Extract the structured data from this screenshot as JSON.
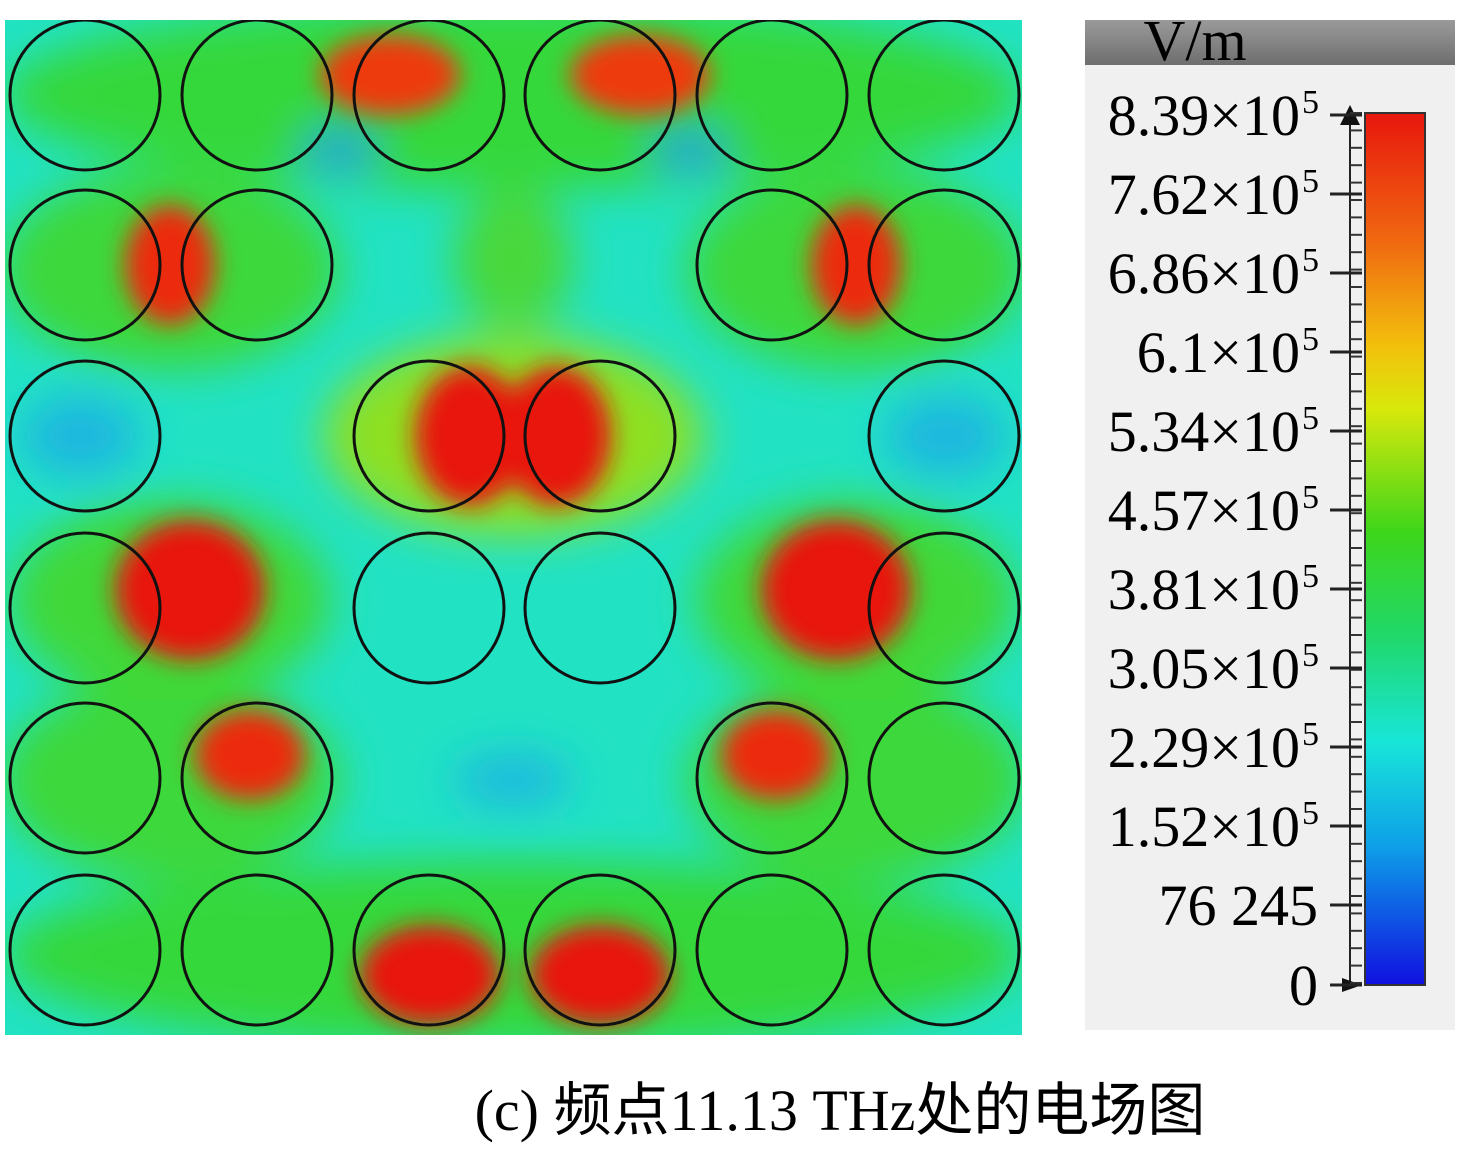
{
  "figure": {
    "colorbar": {
      "unit": "V/m",
      "ticks": [
        {
          "base": "8.39×10",
          "exponent": "5"
        },
        {
          "base": "7.62×10",
          "exponent": "5"
        },
        {
          "base": "6.86×10",
          "exponent": "5"
        },
        {
          "base": "6.1×10",
          "exponent": "5"
        },
        {
          "base": "5.34×10",
          "exponent": "5"
        },
        {
          "base": "4.57×10",
          "exponent": "5"
        },
        {
          "base": "3.81×10",
          "exponent": "5"
        },
        {
          "base": "3.05×10",
          "exponent": "5"
        },
        {
          "base": "2.29×10",
          "exponent": "5"
        },
        {
          "base": "1.52×10",
          "exponent": "5"
        },
        {
          "base": "76 245"
        },
        {
          "base": "0"
        }
      ]
    },
    "caption": "(c) 频点11.13 THz处的电场图"
  }
}
